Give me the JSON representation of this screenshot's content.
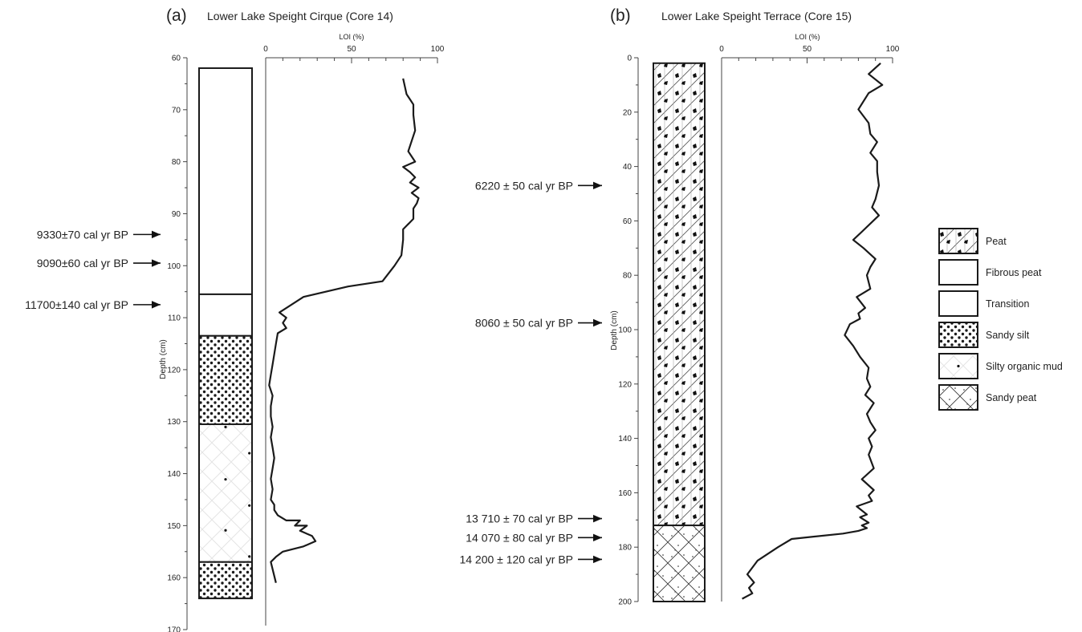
{
  "chart_data": [
    {
      "type": "line",
      "panel_label": "(a)",
      "title": "Lower Lake Speight Cirque (Core 14)",
      "ylabel": "Depth (cm)",
      "xlabel": "LOI (%)",
      "y_ticks": [
        "60",
        "70",
        "80",
        "90",
        "100",
        "110",
        "120",
        "130",
        "140",
        "150",
        "160",
        "170"
      ],
      "ylim": [
        60,
        170
      ],
      "x_ticks": [
        "0",
        "50",
        "100"
      ],
      "xlim": [
        0,
        100
      ],
      "series": [
        {
          "x": [
            80,
            82,
            86,
            86,
            87,
            85,
            83,
            87,
            80,
            84,
            87,
            84,
            89,
            85,
            89,
            88,
            86,
            86,
            80,
            80,
            79,
            75,
            68,
            48,
            22,
            8,
            12,
            10,
            12,
            7,
            6,
            5,
            4,
            3,
            2,
            4,
            3,
            3,
            4,
            3,
            4,
            5,
            4,
            3,
            4,
            3,
            5,
            5,
            7,
            12,
            20,
            17,
            24,
            20,
            27,
            29,
            22,
            10,
            6,
            3,
            6
          ],
          "y": [
            64,
            67,
            69,
            71,
            74,
            76,
            78,
            80,
            81,
            82,
            83,
            84,
            85,
            86,
            87,
            88,
            89,
            91,
            93,
            95,
            98,
            100,
            103,
            104,
            106,
            109,
            110,
            111,
            112,
            113,
            115,
            117,
            119,
            121,
            123,
            125,
            127,
            129,
            131,
            133,
            135,
            137,
            139,
            141,
            143,
            145,
            146,
            147,
            148,
            149,
            149,
            150,
            150,
            151,
            152,
            153,
            154,
            155,
            156,
            157,
            161
          ]
        }
      ],
      "units": [
        {
          "name": "Fibrous peat",
          "top": 62,
          "bottom": 105.5
        },
        {
          "name": "Transition",
          "top": 105.5,
          "bottom": 113.5
        },
        {
          "name": "Sandy silt",
          "top": 113.5,
          "bottom": 130.5
        },
        {
          "name": "Silty organic mud",
          "top": 130.5,
          "bottom": 157
        },
        {
          "name": "Sandy silt",
          "top": 157,
          "bottom": 164
        }
      ],
      "dates": [
        {
          "label": "9330±70 cal yr BP",
          "depth": 94
        },
        {
          "label": "9090±60 cal yr BP",
          "depth": 99.5
        },
        {
          "label": "11700±140 cal yr BP",
          "depth": 107.5
        }
      ]
    },
    {
      "type": "line",
      "panel_label": "(b)",
      "title": "Lower Lake Speight Terrace (Core 15)",
      "ylabel": "Depth (cm)",
      "xlabel": "LOI (%)",
      "y_ticks": [
        "0",
        "20",
        "40",
        "60",
        "80",
        "100",
        "120",
        "140",
        "160",
        "180",
        "200"
      ],
      "ylim": [
        0,
        200
      ],
      "x_ticks": [
        "0",
        "50",
        "100"
      ],
      "xlim": [
        0,
        100
      ],
      "series": [
        {
          "x": [
            93,
            86,
            94,
            86,
            80,
            86,
            87,
            91,
            87,
            91,
            91,
            92,
            90,
            88,
            92,
            87,
            82,
            77,
            83,
            90,
            87,
            85,
            87,
            79,
            84,
            80,
            81,
            75,
            72,
            77,
            81,
            86,
            85,
            87,
            84,
            89,
            85,
            87,
            90,
            86,
            88,
            86,
            89,
            82,
            89,
            86,
            88,
            79,
            83,
            85,
            81,
            86,
            82,
            85,
            80,
            71,
            41,
            33,
            21,
            15,
            19,
            16,
            18,
            12
          ],
          "y": [
            2,
            6,
            10,
            13,
            19,
            24,
            28,
            31,
            35,
            38,
            42,
            47,
            52,
            55,
            58,
            61,
            64,
            67,
            70,
            74,
            77,
            80,
            85,
            88,
            92,
            94,
            96,
            98,
            102,
            106,
            110,
            114,
            118,
            121,
            124,
            127,
            131,
            134,
            137,
            140,
            143,
            146,
            151,
            155,
            159,
            161,
            163,
            165,
            167,
            168,
            169,
            171,
            172,
            173,
            174,
            175,
            177,
            180,
            185,
            190,
            193,
            195,
            197,
            199
          ]
        }
      ],
      "units": [
        {
          "name": "Peat",
          "top": 2,
          "bottom": 172
        },
        {
          "name": "Sandy peat",
          "top": 172,
          "bottom": 200
        }
      ],
      "dates": [
        {
          "label": "6220 ± 50 cal yr BP",
          "depth": 47
        },
        {
          "label": "8060 ± 50 cal yr BP",
          "depth": 97.5
        },
        {
          "label": "13 710 ± 70 cal yr BP",
          "depth": 169.5
        },
        {
          "label": "14 070 ± 80 cal yr BP",
          "depth": 176.5
        },
        {
          "label": "14 200 ± 120 cal yr BP",
          "depth": 184.5
        }
      ]
    }
  ],
  "legend": {
    "placement": "right",
    "items": [
      {
        "label": "Peat",
        "pattern": "peat"
      },
      {
        "label": "Fibrous peat",
        "pattern": "blank"
      },
      {
        "label": "Transition",
        "pattern": "blank"
      },
      {
        "label": "Sandy silt",
        "pattern": "dots"
      },
      {
        "label": "Silty organic mud",
        "pattern": "sparsedot"
      },
      {
        "label": "Sandy peat",
        "pattern": "sandypeat"
      }
    ]
  }
}
